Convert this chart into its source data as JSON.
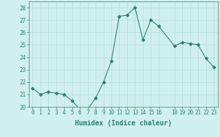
{
  "x": [
    0,
    1,
    2,
    3,
    4,
    5,
    6,
    7,
    8,
    9,
    10,
    11,
    12,
    13,
    14,
    15,
    16,
    18,
    19,
    20,
    21,
    22,
    23
  ],
  "y": [
    21.5,
    21.0,
    21.2,
    21.1,
    21.0,
    20.5,
    19.8,
    19.8,
    20.7,
    22.0,
    23.7,
    27.3,
    27.4,
    28.0,
    25.4,
    27.0,
    26.5,
    24.9,
    25.2,
    25.1,
    25.0,
    23.9,
    23.2
  ],
  "line_color": "#2e7d6e",
  "marker": "D",
  "marker_size": 2.5,
  "bg_color": "#cff0ec",
  "grid_color": "#b8ddd8",
  "xlabel": "Humidex (Indice chaleur)",
  "xlim": [
    -0.5,
    23.5
  ],
  "ylim": [
    20,
    28.5
  ],
  "yticks": [
    20,
    21,
    22,
    23,
    24,
    25,
    26,
    27,
    28
  ],
  "xticks": [
    0,
    1,
    2,
    3,
    4,
    5,
    6,
    7,
    8,
    9,
    10,
    11,
    12,
    13,
    14,
    15,
    16,
    18,
    19,
    20,
    21,
    22,
    23
  ],
  "tick_color": "#2e7d6e",
  "label_color": "#2e7d6e",
  "tick_fontsize": 5.5,
  "xlabel_fontsize": 7,
  "linewidth": 0.8
}
